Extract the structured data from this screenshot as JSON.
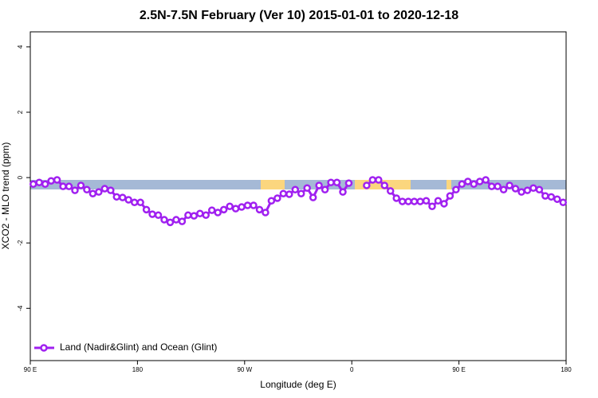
{
  "chart_data": {
    "type": "line",
    "title": "2.5N-7.5N February (Ver 10)   2015-01-01 to 2020-12-18",
    "x_label": "Longitude (deg E)",
    "y_label": "XCO2 - MLO trend (ppm)",
    "x": [
      92.5,
      97.5,
      102.5,
      107.5,
      112.5,
      117.5,
      122.5,
      127.5,
      132.5,
      137.5,
      142.5,
      147.5,
      152.5,
      157.5,
      162.5,
      167.5,
      172.5,
      177.5,
      182.5,
      187.5,
      192.5,
      197.5,
      202.5,
      207.5,
      212.5,
      217.5,
      222.5,
      227.5,
      232.5,
      237.5,
      242.5,
      247.5,
      252.5,
      257.5,
      262.5,
      267.5,
      272.5,
      277.5,
      282.5,
      287.5,
      292.5,
      297.5,
      302.5,
      307.5,
      312.5,
      317.5,
      322.5,
      327.5,
      332.5,
      337.5,
      342.5,
      347.5,
      352.5,
      357.5,
      362.5,
      367.5,
      372.5,
      377.5,
      382.5,
      387.5,
      392.5,
      397.5,
      402.5,
      407.5,
      412.5,
      417.5,
      422.5,
      427.5,
      432.5,
      437.5,
      442.5,
      447.5,
      452.5,
      457.5,
      462.5,
      467.5,
      472.5,
      477.5,
      482.5,
      487.5,
      492.5,
      497.5,
      502.5,
      507.5,
      512.5,
      517.5,
      522.5,
      527.5,
      532.5,
      537.5
    ],
    "series": [
      {
        "name": "Land (Nadir&Glint) and Ocean (Glint)",
        "color": "#a020f0",
        "values": [
          -0.2,
          -0.15,
          -0.2,
          -0.1,
          -0.07,
          -0.27,
          -0.27,
          -0.39,
          -0.24,
          -0.37,
          -0.49,
          -0.44,
          -0.34,
          -0.39,
          -0.59,
          -0.61,
          -0.68,
          -0.76,
          -0.76,
          -0.98,
          -1.12,
          -1.15,
          -1.29,
          -1.37,
          -1.29,
          -1.34,
          -1.15,
          -1.17,
          -1.1,
          -1.15,
          -1.0,
          -1.07,
          -0.98,
          -0.88,
          -0.95,
          -0.9,
          -0.85,
          -0.85,
          -0.98,
          -1.07,
          -0.71,
          -0.63,
          -0.49,
          -0.51,
          -0.37,
          -0.49,
          -0.32,
          -0.61,
          -0.24,
          -0.37,
          -0.15,
          -0.15,
          -0.44,
          -0.17,
          null,
          null,
          -0.24,
          -0.07,
          -0.07,
          -0.24,
          -0.41,
          -0.63,
          -0.73,
          -0.73,
          -0.73,
          -0.73,
          -0.71,
          -0.88,
          -0.71,
          -0.8,
          -0.56,
          -0.37,
          -0.2,
          -0.12,
          -0.2,
          -0.12,
          -0.07,
          -0.27,
          -0.27,
          -0.37,
          -0.24,
          -0.34,
          -0.44,
          -0.39,
          -0.32,
          -0.37,
          -0.56,
          -0.59,
          -0.66,
          -0.76
        ]
      }
    ],
    "xlim": [
      90,
      540
    ],
    "xticks": [
      {
        "value": 90,
        "label": "90 E"
      },
      {
        "value": 180,
        "label": "180"
      },
      {
        "value": 270,
        "label": "90 W"
      },
      {
        "value": 360,
        "label": "0"
      },
      {
        "value": 450,
        "label": "90 E"
      },
      {
        "value": 540,
        "label": "180"
      }
    ],
    "ylim": [
      -5.6,
      4.46
    ],
    "yticks": [
      -4,
      -2,
      0,
      2,
      4
    ],
    "legend": "bottom-left"
  }
}
